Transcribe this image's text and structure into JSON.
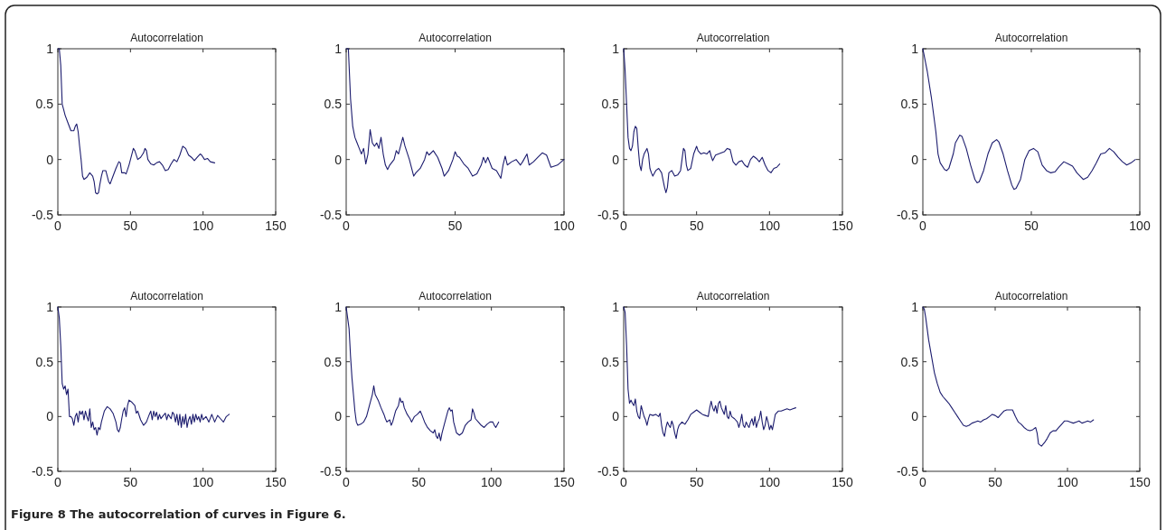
{
  "chart_data": [
    {
      "type": "line",
      "title": "Autocorrelation",
      "color": "#1c1c6e",
      "xlim": [
        0,
        150
      ],
      "xticks": [
        0,
        50,
        100,
        150
      ],
      "ylim": [
        -0.5,
        1
      ],
      "yticks": [
        -0.5,
        0,
        0.5,
        1
      ],
      "x": [
        0,
        1,
        2,
        3,
        4,
        5,
        7,
        9,
        11,
        12,
        13,
        14,
        15,
        16,
        17,
        18,
        20,
        22,
        24,
        25,
        26,
        27,
        28,
        29,
        30,
        31,
        33,
        35,
        36,
        38,
        40,
        42,
        43,
        44,
        46,
        47,
        49,
        51,
        52,
        53,
        55,
        57,
        59,
        60,
        61,
        62,
        64,
        66,
        68,
        70,
        72,
        74,
        76,
        78,
        80,
        82,
        84,
        86,
        88,
        90,
        92,
        94,
        96,
        98,
        99,
        101,
        103,
        105,
        108
      ],
      "values": [
        1,
        1,
        0.85,
        0.5,
        0.45,
        0.4,
        0.33,
        0.26,
        0.26,
        0.3,
        0.32,
        0.25,
        0.12,
        0,
        -0.15,
        -0.18,
        -0.16,
        -0.12,
        -0.15,
        -0.2,
        -0.3,
        -0.31,
        -0.3,
        -0.22,
        -0.15,
        -0.1,
        -0.1,
        -0.2,
        -0.22,
        -0.15,
        -0.08,
        -0.02,
        -0.03,
        -0.12,
        -0.12,
        -0.13,
        -0.05,
        0.05,
        0.1,
        0.08,
        0,
        0.02,
        0.06,
        0.1,
        0.08,
        0,
        -0.04,
        -0.05,
        -0.03,
        -0.02,
        -0.05,
        -0.1,
        -0.09,
        -0.04,
        0,
        -0.02,
        0.04,
        0.12,
        0.1,
        0.04,
        0.02,
        -0.01,
        0.02,
        0.05,
        0.04,
        0,
        0.01,
        -0.02,
        -0.03
      ]
    },
    {
      "type": "line",
      "title": "Autocorrelation",
      "color": "#1c1c6e",
      "xlim": [
        0,
        100
      ],
      "xticks": [
        0,
        50,
        100
      ],
      "ylim": [
        -0.5,
        1
      ],
      "yticks": [
        -0.5,
        0,
        0.5,
        1
      ],
      "x": [
        0,
        1,
        2,
        3,
        4,
        5,
        6,
        7,
        8,
        9,
        10,
        11,
        12,
        13,
        14,
        15,
        16,
        17,
        18,
        19,
        20,
        22,
        23,
        24,
        26,
        27,
        29,
        31,
        32,
        34,
        36,
        37,
        38,
        40,
        42,
        44,
        45,
        47,
        49,
        50,
        51,
        52,
        54,
        56,
        58,
        60,
        62,
        63,
        64,
        65,
        67,
        69,
        71,
        72,
        73,
        74,
        76,
        78,
        80,
        81,
        83,
        84,
        86,
        88,
        90,
        92,
        94,
        97,
        100
      ],
      "values": [
        1,
        1,
        0.55,
        0.3,
        0.2,
        0.15,
        0.1,
        0.05,
        0.1,
        -0.04,
        0.05,
        0.27,
        0.15,
        0.12,
        0.15,
        0.1,
        0.2,
        0.05,
        -0.05,
        -0.09,
        -0.05,
        0,
        0.08,
        0.05,
        0.2,
        0.12,
        0,
        -0.15,
        -0.12,
        -0.08,
        0,
        0.07,
        0.04,
        0.08,
        0.02,
        -0.08,
        -0.15,
        -0.1,
        0,
        0.07,
        0.03,
        0.02,
        -0.04,
        -0.08,
        -0.15,
        -0.13,
        -0.05,
        0.02,
        -0.03,
        0.02,
        -0.08,
        -0.1,
        -0.17,
        -0.05,
        0.03,
        -0.05,
        -0.02,
        0,
        -0.05,
        -0.02,
        0.05,
        -0.05,
        -0.02,
        0.02,
        0.06,
        0.04,
        -0.07,
        -0.05,
        0
      ]
    },
    {
      "type": "line",
      "title": "Autocorrelation",
      "color": "#1c1c6e",
      "xlim": [
        0,
        150
      ],
      "xticks": [
        0,
        50,
        100,
        150
      ],
      "ylim": [
        -0.5,
        1
      ],
      "yticks": [
        -0.5,
        0,
        0.5,
        1
      ],
      "x": [
        0,
        1,
        2,
        3,
        4,
        5,
        6,
        7,
        8,
        9,
        10,
        11,
        12,
        13,
        14,
        16,
        17,
        18,
        19,
        20,
        22,
        24,
        26,
        28,
        29,
        30,
        31,
        33,
        35,
        37,
        39,
        40,
        41,
        42,
        43,
        44,
        46,
        48,
        50,
        51,
        53,
        55,
        57,
        59,
        60,
        61,
        63,
        65,
        67,
        69,
        71,
        73,
        75,
        77,
        79,
        81,
        83,
        85,
        87,
        89,
        91,
        93,
        95,
        97,
        99,
        101,
        103,
        105,
        107
      ],
      "values": [
        1,
        0.8,
        0.5,
        0.2,
        0.1,
        0.08,
        0.12,
        0.25,
        0.3,
        0.28,
        0.1,
        -0.05,
        -0.1,
        0,
        0.05,
        0.1,
        0.05,
        -0.08,
        -0.12,
        -0.15,
        -0.1,
        -0.08,
        -0.12,
        -0.25,
        -0.3,
        -0.25,
        -0.12,
        -0.1,
        -0.15,
        -0.14,
        -0.1,
        0,
        0.1,
        0.08,
        -0.05,
        -0.1,
        -0.08,
        0.05,
        0.12,
        0.08,
        0.05,
        0.06,
        0.05,
        0.08,
        0.03,
        -0.01,
        0.04,
        0.05,
        0.06,
        0.07,
        0.1,
        0.09,
        -0.02,
        -0.05,
        -0.02,
        -0.01,
        -0.05,
        -0.07,
        0,
        0.03,
        0.01,
        -0.02,
        0.02,
        -0.05,
        -0.1,
        -0.12,
        -0.08,
        -0.07,
        -0.04
      ]
    },
    {
      "type": "line",
      "title": "Autocorrelation",
      "color": "#1c1c6e",
      "xlim": [
        0,
        100
      ],
      "xticks": [
        0,
        50,
        100
      ],
      "ylim": [
        -0.5,
        1
      ],
      "yticks": [
        -0.5,
        0,
        0.5,
        1
      ],
      "x": [
        0,
        2,
        4,
        6,
        7,
        8,
        10,
        11,
        12,
        14,
        15,
        17,
        18,
        20,
        22,
        24,
        25,
        26,
        28,
        30,
        32,
        34,
        35,
        37,
        39,
        41,
        42,
        43,
        45,
        47,
        49,
        51,
        53,
        55,
        57,
        59,
        61,
        63,
        65,
        67,
        69,
        71,
        73,
        74,
        76,
        78,
        80,
        82,
        84,
        86,
        88,
        90,
        92,
        94,
        96,
        98
      ],
      "values": [
        1,
        0.8,
        0.55,
        0.25,
        0.05,
        -0.03,
        -0.09,
        -0.1,
        -0.08,
        0.05,
        0.15,
        0.22,
        0.21,
        0.1,
        -0.05,
        -0.18,
        -0.21,
        -0.2,
        -0.1,
        0.05,
        0.15,
        0.18,
        0.16,
        0.05,
        -0.1,
        -0.23,
        -0.27,
        -0.26,
        -0.18,
        0,
        0.08,
        0.1,
        0.07,
        -0.05,
        -0.1,
        -0.12,
        -0.11,
        -0.06,
        -0.02,
        -0.04,
        -0.06,
        -0.12,
        -0.16,
        -0.18,
        -0.16,
        -0.1,
        -0.03,
        0.05,
        0.06,
        0.1,
        0.07,
        0.02,
        -0.02,
        -0.05,
        -0.03,
        0
      ]
    },
    {
      "type": "line",
      "title": "Autocorrelation",
      "color": "#1c1c6e",
      "xlim": [
        0,
        150
      ],
      "xticks": [
        0,
        50,
        100,
        150
      ],
      "ylim": [
        -0.5,
        1
      ],
      "yticks": [
        -0.5,
        0,
        0.5,
        1
      ],
      "x": [
        0,
        1,
        2,
        3,
        4,
        5,
        6,
        7,
        8,
        9,
        10,
        11,
        12,
        13,
        14,
        15,
        16,
        17,
        18,
        19,
        20,
        21,
        22,
        23,
        24,
        25,
        26,
        27,
        28,
        29,
        30,
        32,
        34,
        36,
        38,
        40,
        41,
        42,
        43,
        44,
        45,
        46,
        47,
        48,
        49,
        51,
        53,
        54,
        55,
        57,
        59,
        61,
        63,
        64,
        65,
        66,
        67,
        68,
        69,
        70,
        71,
        72,
        74,
        75,
        76,
        78,
        79,
        80,
        81,
        82,
        83,
        84,
        85,
        86,
        87,
        88,
        89,
        90,
        91,
        92,
        93,
        94,
        95,
        96,
        97,
        98,
        99,
        100,
        102,
        104,
        106,
        108,
        110,
        112,
        114,
        116,
        118
      ],
      "values": [
        1,
        0.9,
        0.65,
        0.3,
        0.25,
        0.28,
        0.2,
        0.25,
        0,
        0,
        -0.02,
        -0.08,
        0,
        0.03,
        -0.05,
        0.05,
        0.02,
        0.05,
        -0.03,
        0.05,
        0,
        -0.04,
        0.07,
        -0.1,
        -0.05,
        -0.12,
        -0.1,
        -0.17,
        -0.1,
        -0.12,
        -0.05,
        0.05,
        0.09,
        0.07,
        0.03,
        -0.05,
        -0.12,
        -0.14,
        -0.1,
        -0.02,
        0.05,
        0.08,
        0,
        0.1,
        0.15,
        0.13,
        0.1,
        0.03,
        0.05,
        -0.03,
        -0.08,
        -0.05,
        0.02,
        0.05,
        -0.03,
        0.05,
        0,
        0.04,
        -0.03,
        0.02,
        -0.02,
        0,
        0.03,
        -0.03,
        0.02,
        -0.02,
        0.04,
        0.02,
        -0.05,
        0.02,
        -0.08,
        0.02,
        -0.1,
        0,
        -0.07,
        0.02,
        -0.1,
        -0.03,
        0,
        -0.07,
        0.02,
        -0.05,
        0.02,
        -0.03,
        0,
        -0.05,
        0.02,
        -0.03,
        0,
        -0.05,
        0.02,
        -0.05,
        0.01,
        -0.02,
        -0.05,
        0,
        0.02
      ]
    },
    {
      "type": "line",
      "title": "Autocorrelation",
      "color": "#1c1c6e",
      "xlim": [
        0,
        150
      ],
      "xticks": [
        0,
        50,
        100,
        150
      ],
      "ylim": [
        -0.5,
        1
      ],
      "yticks": [
        -0.5,
        0,
        0.5,
        1
      ],
      "x": [
        0,
        1,
        2,
        3,
        4,
        5,
        6,
        7,
        8,
        10,
        12,
        14,
        16,
        18,
        19,
        20,
        22,
        24,
        26,
        27,
        28,
        30,
        31,
        32,
        34,
        36,
        37,
        38,
        39,
        40,
        42,
        44,
        45,
        47,
        49,
        51,
        52,
        54,
        56,
        58,
        60,
        61,
        62,
        63,
        64,
        65,
        66,
        68,
        70,
        71,
        72,
        73,
        74,
        76,
        78,
        80,
        82,
        84,
        86,
        87,
        88,
        89,
        91,
        93,
        95,
        97,
        99,
        101,
        102,
        103,
        105
      ],
      "values": [
        1,
        0.9,
        0.8,
        0.55,
        0.35,
        0.2,
        0.05,
        -0.05,
        -0.08,
        -0.07,
        -0.05,
        0,
        0.1,
        0.2,
        0.28,
        0.2,
        0.15,
        0.08,
        0.02,
        -0.02,
        -0.05,
        -0.03,
        -0.08,
        -0.05,
        0.05,
        0.1,
        0.17,
        0.13,
        0.14,
        0.08,
        0.02,
        -0.02,
        -0.05,
        0,
        0.02,
        0.05,
        0.02,
        -0.05,
        -0.1,
        -0.13,
        -0.15,
        -0.12,
        -0.18,
        -0.2,
        -0.15,
        -0.22,
        -0.15,
        -0.05,
        0.05,
        0.08,
        0.05,
        0.06,
        -0.05,
        -0.15,
        -0.17,
        -0.15,
        -0.08,
        -0.05,
        -0.03,
        0.07,
        0.03,
        -0.02,
        -0.05,
        -0.08,
        -0.1,
        -0.07,
        -0.05,
        -0.05,
        -0.08,
        -0.1,
        -0.05
      ]
    },
    {
      "type": "line",
      "title": "Autocorrelation",
      "color": "#1c1c6e",
      "xlim": [
        0,
        150
      ],
      "xticks": [
        0,
        50,
        100,
        150
      ],
      "ylim": [
        -0.5,
        1
      ],
      "yticks": [
        -0.5,
        0,
        0.5,
        1
      ],
      "x": [
        0,
        1,
        2,
        3,
        4,
        5,
        6,
        7,
        8,
        9,
        10,
        11,
        12,
        13,
        14,
        15,
        16,
        17,
        18,
        20,
        22,
        24,
        25,
        26,
        27,
        28,
        29,
        30,
        31,
        32,
        33,
        34,
        35,
        36,
        37,
        38,
        40,
        42,
        44,
        46,
        48,
        50,
        52,
        54,
        56,
        58,
        59,
        60,
        61,
        62,
        63,
        64,
        65,
        66,
        67,
        68,
        69,
        70,
        71,
        72,
        73,
        74,
        76,
        78,
        79,
        80,
        81,
        82,
        83,
        84,
        85,
        86,
        87,
        88,
        89,
        90,
        91,
        92,
        93,
        94,
        95,
        96,
        97,
        98,
        99,
        100,
        101,
        102,
        103,
        104,
        106,
        108,
        110,
        112,
        114,
        116,
        118
      ],
      "values": [
        1,
        0.95,
        0.65,
        0.25,
        0.12,
        0.15,
        0.12,
        0.1,
        0.16,
        0.05,
        0,
        -0.02,
        0.1,
        0.05,
        0,
        -0.03,
        -0.08,
        -0.02,
        0.02,
        0.01,
        0.02,
        0,
        0.03,
        -0.08,
        -0.15,
        -0.18,
        -0.1,
        -0.05,
        -0.08,
        -0.1,
        -0.04,
        -0.08,
        -0.15,
        -0.2,
        -0.12,
        -0.08,
        -0.05,
        -0.07,
        -0.03,
        0.02,
        0.04,
        0.06,
        0.04,
        0.02,
        0.01,
        0,
        0.08,
        0.14,
        0.08,
        0.05,
        0.1,
        0.03,
        0.12,
        0.14,
        0.08,
        0.05,
        0.02,
        0.1,
        0,
        -0.02,
        0.05,
        0,
        -0.02,
        -0.05,
        -0.1,
        -0.05,
        0.02,
        -0.08,
        -0.1,
        -0.05,
        -0.08,
        -0.1,
        -0.05,
        -0.02,
        -0.08,
        0,
        -0.1,
        -0.05,
        -0.02,
        0.05,
        -0.05,
        -0.12,
        -0.08,
        0,
        -0.05,
        -0.12,
        -0.08,
        -0.12,
        -0.05,
        0.02,
        0.05,
        0.05,
        0.06,
        0.07,
        0.06,
        0.07,
        0.08
      ]
    },
    {
      "type": "line",
      "title": "Autocorrelation",
      "color": "#1c1c6e",
      "xlim": [
        0,
        150
      ],
      "xticks": [
        0,
        50,
        100,
        150
      ],
      "ylim": [
        -0.5,
        1
      ],
      "yticks": [
        -0.5,
        0,
        0.5,
        1
      ],
      "x": [
        0,
        1,
        2,
        4,
        6,
        8,
        10,
        12,
        14,
        16,
        18,
        20,
        22,
        24,
        26,
        28,
        30,
        32,
        34,
        36,
        38,
        40,
        42,
        44,
        46,
        48,
        50,
        52,
        54,
        56,
        58,
        60,
        62,
        64,
        66,
        68,
        70,
        72,
        74,
        76,
        78,
        79,
        80,
        82,
        84,
        86,
        88,
        90,
        92,
        94,
        96,
        98,
        100,
        102,
        104,
        106,
        108,
        110,
        112,
        114,
        116,
        118
      ],
      "values": [
        1,
        0.98,
        0.9,
        0.7,
        0.55,
        0.4,
        0.3,
        0.22,
        0.18,
        0.15,
        0.12,
        0.08,
        0.04,
        0,
        -0.04,
        -0.08,
        -0.09,
        -0.08,
        -0.06,
        -0.05,
        -0.04,
        -0.05,
        -0.03,
        -0.02,
        0,
        0.02,
        0.01,
        -0.01,
        0.02,
        0.05,
        0.06,
        0.06,
        0.06,
        0,
        -0.05,
        -0.07,
        -0.1,
        -0.12,
        -0.13,
        -0.12,
        -0.1,
        -0.15,
        -0.25,
        -0.27,
        -0.24,
        -0.2,
        -0.15,
        -0.13,
        -0.13,
        -0.1,
        -0.07,
        -0.04,
        -0.04,
        -0.05,
        -0.06,
        -0.05,
        -0.04,
        -0.06,
        -0.05,
        -0.04,
        -0.05,
        -0.03
      ],
      "annotations": [
        "Figure 8 The autocorrelation of curves in Figure 6."
      ]
    }
  ]
}
